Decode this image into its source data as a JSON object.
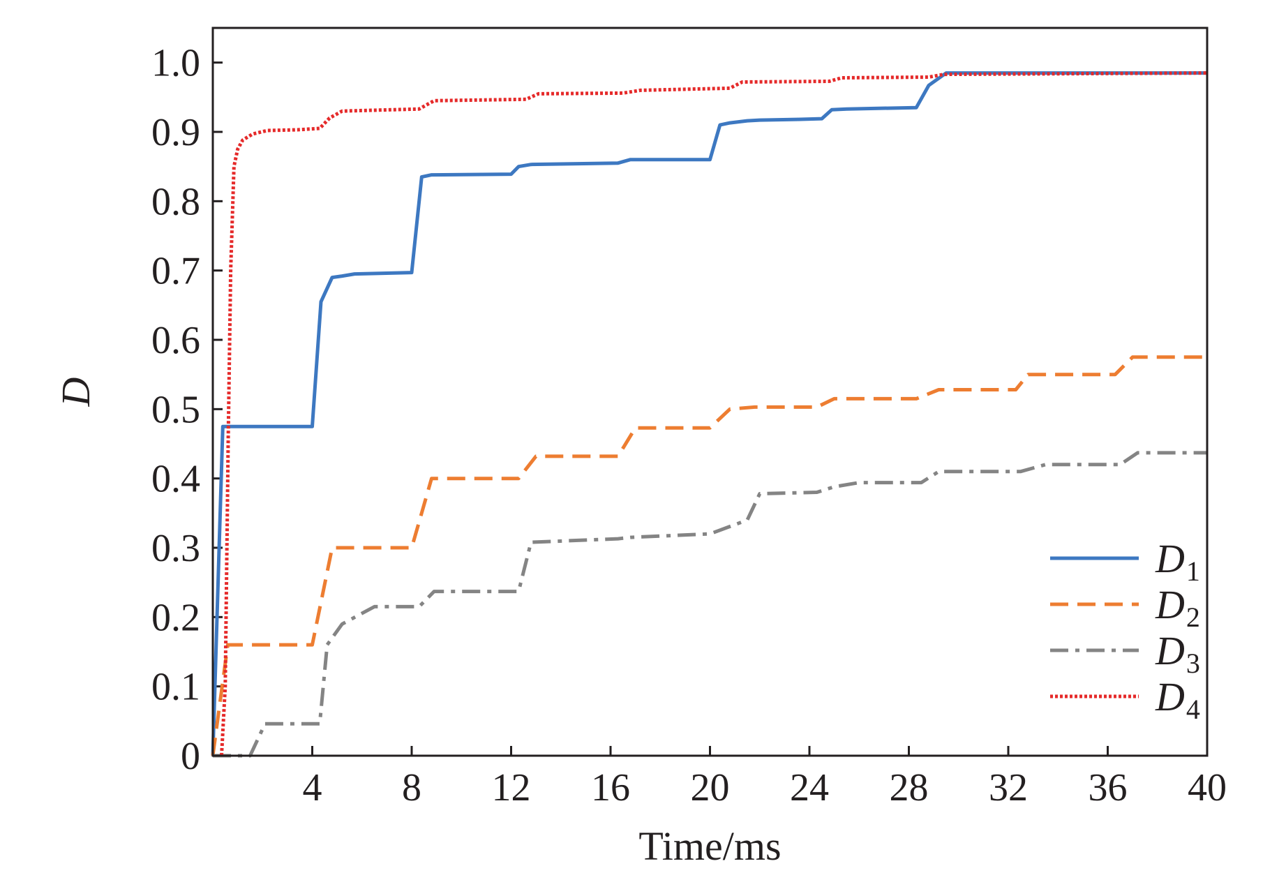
{
  "chart_data": {
    "type": "line",
    "xlabel": "Time/ms",
    "ylabel": "D",
    "xlim": [
      0,
      40
    ],
    "ylim": [
      0,
      1.05
    ],
    "xticks": [
      4,
      8,
      12,
      16,
      20,
      24,
      28,
      32,
      36,
      40
    ],
    "xtick_labels": [
      "4",
      "8",
      "12",
      "16",
      "20",
      "24",
      "28",
      "32",
      "36",
      "40"
    ],
    "yticks": [
      0,
      0.1,
      0.2,
      0.3,
      0.4,
      0.5,
      0.6,
      0.7,
      0.8,
      0.9,
      1.0
    ],
    "ytick_labels": [
      "0",
      "0.1",
      "0.2",
      "0.3",
      "0.4",
      "0.5",
      "0.6",
      "0.7",
      "0.8",
      "0.9",
      "1.0"
    ],
    "grid": false,
    "legend_position": "bottom-right",
    "series": [
      {
        "name": "D1",
        "label_main": "D",
        "label_sub": "1",
        "color": "#3d78c1",
        "dash": "solid",
        "x": [
          0,
          0.4,
          4.0,
          4.35,
          4.8,
          5.2,
          5.7,
          8.0,
          8.4,
          8.8,
          12.0,
          12.3,
          12.8,
          16.3,
          16.8,
          20.0,
          20.4,
          20.8,
          21.5,
          22.0,
          23.5,
          24.5,
          24.9,
          25.5,
          28.3,
          28.8,
          29.5,
          40.0
        ],
        "y": [
          0,
          0.475,
          0.475,
          0.655,
          0.69,
          0.692,
          0.695,
          0.697,
          0.835,
          0.838,
          0.839,
          0.85,
          0.853,
          0.855,
          0.86,
          0.86,
          0.91,
          0.913,
          0.916,
          0.917,
          0.918,
          0.919,
          0.932,
          0.933,
          0.935,
          0.967,
          0.985,
          0.985
        ]
      },
      {
        "name": "D2",
        "label_main": "D",
        "label_sub": "2",
        "color": "#ed7d31",
        "dash": "dashed",
        "x": [
          0,
          0.6,
          1.0,
          4.0,
          4.8,
          8.0,
          8.8,
          12.3,
          13.0,
          16.3,
          17.0,
          20.0,
          20.8,
          21.8,
          24.3,
          25.0,
          28.3,
          29.2,
          32.3,
          32.8,
          36.3,
          37.0,
          40.0
        ],
        "y": [
          0,
          0.16,
          0.16,
          0.16,
          0.3,
          0.3,
          0.4,
          0.4,
          0.432,
          0.432,
          0.473,
          0.473,
          0.5,
          0.503,
          0.503,
          0.515,
          0.515,
          0.528,
          0.528,
          0.55,
          0.55,
          0.575,
          0.575
        ]
      },
      {
        "name": "D3",
        "label_main": "D",
        "label_sub": "3",
        "color": "#848484",
        "dash": "dashdot",
        "x": [
          0,
          1.5,
          2.1,
          4.3,
          4.6,
          5.2,
          6.5,
          8.3,
          8.9,
          12.3,
          12.8,
          16.3,
          16.8,
          20.0,
          21.5,
          22.0,
          24.3,
          25.0,
          26.0,
          28.5,
          29.2,
          32.5,
          33.5,
          36.5,
          37.2,
          40.0
        ],
        "y": [
          0,
          0,
          0.046,
          0.046,
          0.16,
          0.19,
          0.215,
          0.215,
          0.237,
          0.237,
          0.308,
          0.313,
          0.315,
          0.32,
          0.34,
          0.378,
          0.38,
          0.388,
          0.394,
          0.394,
          0.41,
          0.41,
          0.42,
          0.42,
          0.437,
          0.437
        ]
      },
      {
        "name": "D4",
        "label_main": "D",
        "label_sub": "4",
        "color": "#e52a2a",
        "dash": "dotted",
        "x": [
          0.35,
          0.5,
          0.62,
          0.72,
          0.85,
          1.0,
          1.2,
          1.6,
          2.2,
          3.4,
          4.3,
          4.7,
          5.2,
          8.3,
          8.9,
          12.6,
          13.1,
          16.5,
          17.2,
          20.8,
          21.3,
          24.8,
          25.3,
          28.8,
          29.4,
          40.0
        ],
        "y": [
          0,
          0.1,
          0.46,
          0.7,
          0.85,
          0.875,
          0.888,
          0.897,
          0.902,
          0.903,
          0.905,
          0.92,
          0.93,
          0.933,
          0.945,
          0.947,
          0.955,
          0.956,
          0.96,
          0.963,
          0.972,
          0.973,
          0.978,
          0.979,
          0.983,
          0.985
        ]
      }
    ]
  }
}
